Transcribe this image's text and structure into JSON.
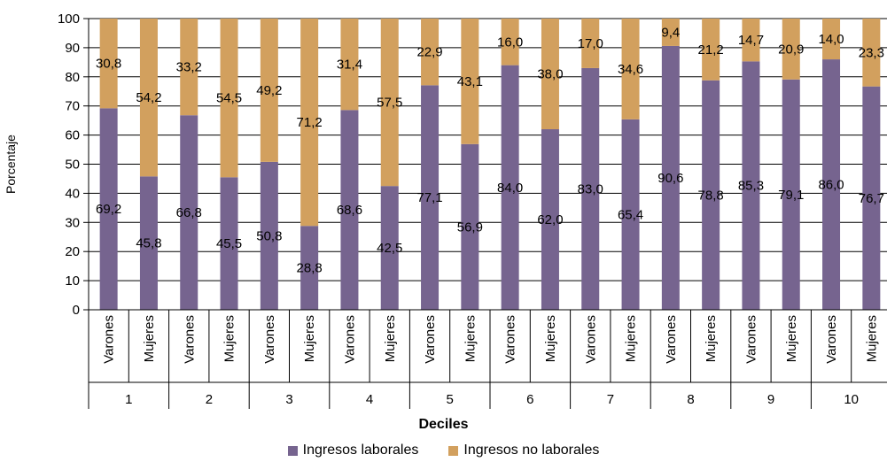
{
  "chart_data": {
    "type": "bar",
    "stacked": true,
    "xlabel": "Deciles",
    "ylabel": "Porcentaje",
    "ylim": [
      0,
      100
    ],
    "yticks": [
      0,
      10,
      20,
      30,
      40,
      50,
      60,
      70,
      80,
      90,
      100
    ],
    "grid": true,
    "legend_position": "bottom",
    "groups": [
      "1",
      "2",
      "3",
      "4",
      "5",
      "6",
      "7",
      "8",
      "9",
      "10"
    ],
    "subcategories": [
      "Varones",
      "Mujeres"
    ],
    "series": [
      {
        "name": "Ingresos laborales",
        "color": "#76648f",
        "values": [
          69.2,
          45.8,
          66.8,
          45.5,
          50.8,
          28.8,
          68.6,
          42.5,
          77.1,
          56.9,
          84.0,
          62.0,
          83.0,
          65.4,
          90.6,
          78.8,
          85.3,
          79.1,
          86.0,
          76.7
        ],
        "labels": [
          "69,2",
          "45,8",
          "66,8",
          "45,5",
          "50,8",
          "28,8",
          "68,6",
          "42,5",
          "77,1",
          "56,9",
          "84,0",
          "62,0",
          "83,0",
          "65,4",
          "90,6",
          "78,8",
          "85,3",
          "79,1",
          "86,0",
          "76,7"
        ]
      },
      {
        "name": "Ingresos no laborales",
        "color": "#d2a05e",
        "values": [
          30.8,
          54.2,
          33.2,
          54.5,
          49.2,
          71.2,
          31.4,
          57.5,
          22.9,
          43.1,
          16.0,
          38.0,
          17.0,
          34.6,
          9.4,
          21.2,
          14.7,
          20.9,
          14.0,
          23.3
        ],
        "labels": [
          "30,8",
          "54,2",
          "33,2",
          "54,5",
          "49,2",
          "71,2",
          "31,4",
          "57,5",
          "22,9",
          "43,1",
          "16,0",
          "38,0",
          "17,0",
          "34,6",
          "9,4",
          "21,2",
          "14,7",
          "20,9",
          "14,0",
          "23,3"
        ]
      }
    ]
  }
}
